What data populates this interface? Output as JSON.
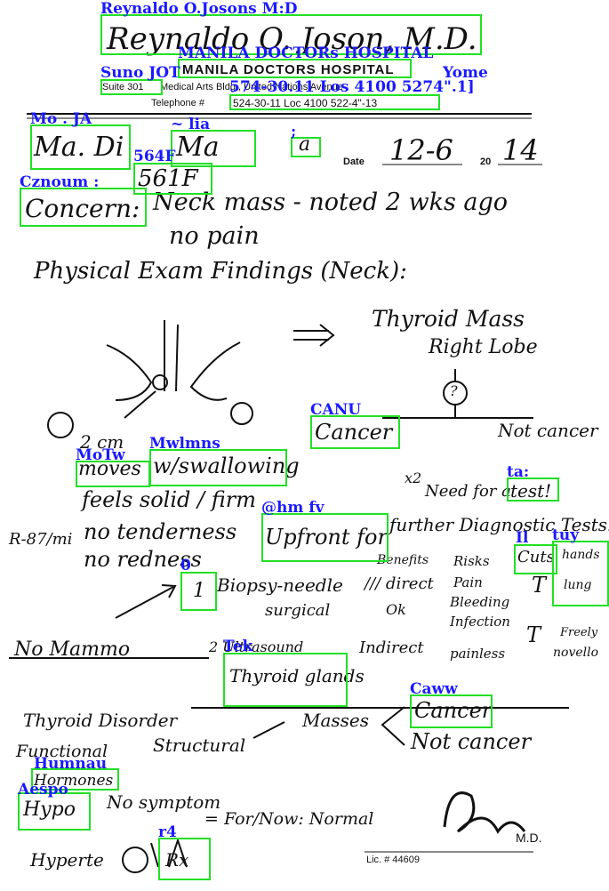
{
  "letterhead": {
    "doctor_name": "Reynaldo O. Joson, M.D.",
    "hospital": "MANILA DOCTORS HOSPITAL",
    "suite": "Suite 301",
    "address_partial": "Medical Arts Bldg., United Nations Avenue",
    "telephone_prefix": "Telephone #",
    "telephone": "524-30-11 Loc 4100  522-4\"-13",
    "date_prefix": "Date",
    "date_value": "12-6",
    "year_prefix": "20",
    "year_value": "14"
  },
  "patient": {
    "name": "Ma. Di",
    "middle": "Ma",
    "room": "561F",
    "extra": "a"
  },
  "notes": {
    "concern_label": "Concern:",
    "concern_text": "Neck mass - noted 2 wks ago",
    "concern_text2": "no pain",
    "pe_heading": "Physical Exam Findings (Neck):",
    "thyroid_mass": "Thyroid Mass",
    "right_lobe": "Right Lobe",
    "cancer_1": "Cancer",
    "not_cancer": "Not cancer",
    "moves": "moves",
    "swallowing": "w/swallowing",
    "size": "2 cm",
    "feels": "feels solid / firm",
    "tenderness": "no tenderness",
    "redness": "no redness",
    "rx": "R-87/mi",
    "pct": "x2",
    "need_for": "Need for a",
    "test": "test!",
    "upfront": "Upfront for",
    "further": "further Diagnostic Tests:",
    "cuts": "Cuts",
    "handz": "hands",
    "lung": "lung",
    "biopsy_num": "1",
    "biopsy": "Biopsy-needle",
    "surgical": "surgical",
    "diag": "/// direct",
    "pct2": "Ok",
    "benefits": "Benefits",
    "risks": "Risks",
    "pain": "Pain",
    "bleeding": "Bleeding",
    "infection": "Infection",
    "ultrasound": "Ultrasound",
    "indirect": "Indirect",
    "painless": "painless",
    "t_mark": "T",
    "too": "T",
    "trouble": "Freely",
    "novello": "novello",
    "mammo": "No Mammo",
    "secondary": "2 Ultrasound",
    "thyroid_glands": "Thyroid glands",
    "thyroid_disorder": "Thyroid Disorder",
    "functional": "Functional",
    "structural": "Structural",
    "masses": "Masses",
    "cancer_2": "Cancer",
    "not_cancer_2": "Not cancer",
    "hormones": "Hormones",
    "hypo": "Hypo",
    "no_symptom": "No symptom",
    "for_now": "= For/Now: Normal",
    "hyperte": "Hyperte",
    "rx2": "Rx",
    "sign_md": "M.D.",
    "lic": "Lic. # 44609"
  },
  "annotations": [
    {
      "label": "Reynaldo O.Josons M:D"
    },
    {
      "label": "MANILA DOCTORs HOSPITAL"
    },
    {
      "label": "Suno JOT"
    },
    {
      "label": "574-30.11 Los 4100 5274\".1]"
    },
    {
      "label": "Yome"
    },
    {
      "label": "Mo . JA"
    },
    {
      "label": "~ lia"
    },
    {
      "label": ";"
    },
    {
      "label": "564F"
    },
    {
      "label": "Cznoum :"
    },
    {
      "label": "CANU"
    },
    {
      "label": "Mwlmns"
    },
    {
      "label": "MoTw"
    },
    {
      "label": "ta:"
    },
    {
      "label": "@hm fv"
    },
    {
      "label": "Il"
    },
    {
      "label": "tuy"
    },
    {
      "label": "0"
    },
    {
      "label": "Tek"
    },
    {
      "label": "Caww"
    },
    {
      "label": "Humnau"
    },
    {
      "label": "Aespo"
    },
    {
      "label": "r4"
    }
  ],
  "colors": {
    "box": "#22e026",
    "label": "#1a1aff"
  }
}
